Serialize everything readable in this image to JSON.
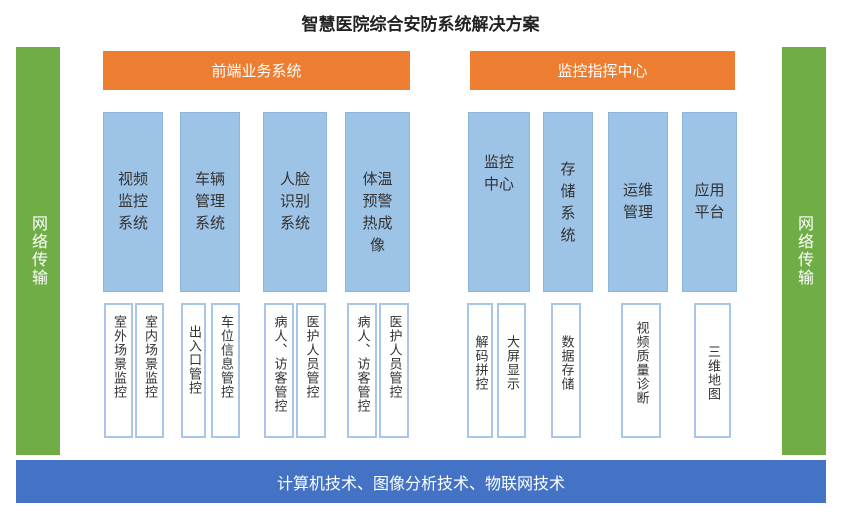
{
  "title": "智慧医院综合安防系统解决方案",
  "side_left": "网络传输",
  "side_right": "网络传输",
  "groups": [
    {
      "label": "前端业务系统"
    },
    {
      "label": "监控指挥中心"
    }
  ],
  "columns": [
    {
      "label": "视频监控系统",
      "subs": [
        "室外场景监控",
        "室内场景监控"
      ]
    },
    {
      "label": "车辆管理系统",
      "subs": [
        "出入口管控",
        "车位信息管控"
      ]
    },
    {
      "label": "人脸识别系统",
      "subs": [
        "病人、访客管控",
        "医护人员管控"
      ]
    },
    {
      "label": "体温预警热成像",
      "subs": [
        "病人、访客管控",
        "医护人员管控"
      ]
    },
    {
      "label": "监控中心",
      "subs": [
        "解码拼控",
        "大屏显示"
      ]
    },
    {
      "label": "存储系统",
      "subs": [
        "数据存储"
      ]
    },
    {
      "label": "运维管理",
      "subs": [
        "视频质量诊断"
      ]
    },
    {
      "label": "应用平台",
      "subs": [
        "三维地图"
      ]
    }
  ],
  "footer": "计算机技术、图像分析技术、物联网技术",
  "colors": {
    "green": "#70ad47",
    "orange": "#ed7d31",
    "column": "#9dc3e6",
    "footer": "#4472c4"
  }
}
